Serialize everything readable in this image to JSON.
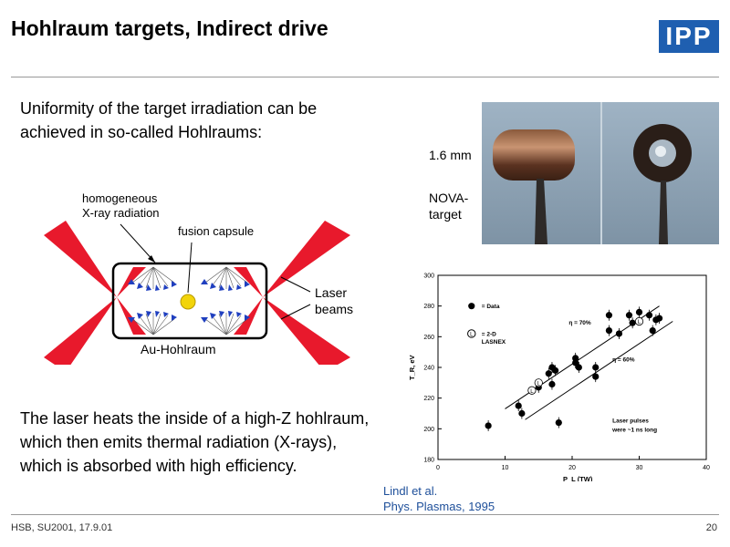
{
  "slide": {
    "title": "Hohlraum targets, Indirect drive",
    "logo": "IPP",
    "intro": "Uniformity of the target irradiation can be achieved in so-called Hohlraums:",
    "body": "The laser heats the inside of a high-Z hohlraum, which then emits thermal radiation (X-rays), which is absorbed with high efficiency.",
    "footer_left": "HSB, SU2001, 17.9.01",
    "page_number": "20"
  },
  "diagram": {
    "label_xray_1": "homogeneous",
    "label_xray_2": "X-ray radiation",
    "label_capsule": "fusion capsule",
    "label_laser_1": "Laser",
    "label_laser_2": "beams",
    "label_hohlraum": "Au-Hohlraum",
    "colors": {
      "laser": "#e8192c",
      "arrow": "#1f3fbf",
      "capsule": "#f2d40a"
    }
  },
  "photo": {
    "label_size": "1.6 mm",
    "label_target_1": "NOVA-",
    "label_target_2": "target"
  },
  "reference": {
    "line1": "Lindl et al.",
    "line2": "Phys. Plasmas, 1995"
  },
  "chart_data": {
    "type": "scatter",
    "xlabel": "P_L (TW)",
    "ylabel": "T_R, eV",
    "xlim": [
      0,
      40
    ],
    "ylim": [
      180,
      300
    ],
    "xticks": [
      0,
      10,
      20,
      30,
      40
    ],
    "yticks": [
      180,
      200,
      220,
      240,
      260,
      280,
      300
    ],
    "legend_data": "= Data",
    "legend_lasnex_1": "= 2-D",
    "legend_lasnex_2": "LASNEX",
    "annotation_70": "η = 70%",
    "annotation_60": "η = 60%",
    "annotation_pulse_1": "Laser pulses",
    "annotation_pulse_2": "were ~1 ns long",
    "data_points": [
      [
        7.5,
        202
      ],
      [
        12,
        215
      ],
      [
        12.5,
        210
      ],
      [
        15,
        227
      ],
      [
        16.5,
        236
      ],
      [
        17,
        240
      ],
      [
        17.5,
        238
      ],
      [
        17,
        229
      ],
      [
        18,
        204
      ],
      [
        20.5,
        243
      ],
      [
        21,
        240
      ],
      [
        20.5,
        246
      ],
      [
        23.5,
        240
      ],
      [
        23.5,
        234
      ],
      [
        25.5,
        274
      ],
      [
        25.5,
        264
      ],
      [
        27,
        262
      ],
      [
        28.5,
        274
      ],
      [
        29,
        269
      ],
      [
        30,
        276
      ],
      [
        31.5,
        274
      ],
      [
        32,
        264
      ],
      [
        32.5,
        271
      ],
      [
        33,
        272
      ]
    ],
    "lasnex_points": [
      [
        14,
        225
      ],
      [
        15,
        230
      ],
      [
        30,
        270
      ]
    ],
    "lines": [
      {
        "name": "η = 70%",
        "x": [
          10,
          33
        ],
        "y": [
          213,
          280
        ]
      },
      {
        "name": "η = 60%",
        "x": [
          13,
          35
        ],
        "y": [
          206,
          270
        ]
      }
    ]
  }
}
